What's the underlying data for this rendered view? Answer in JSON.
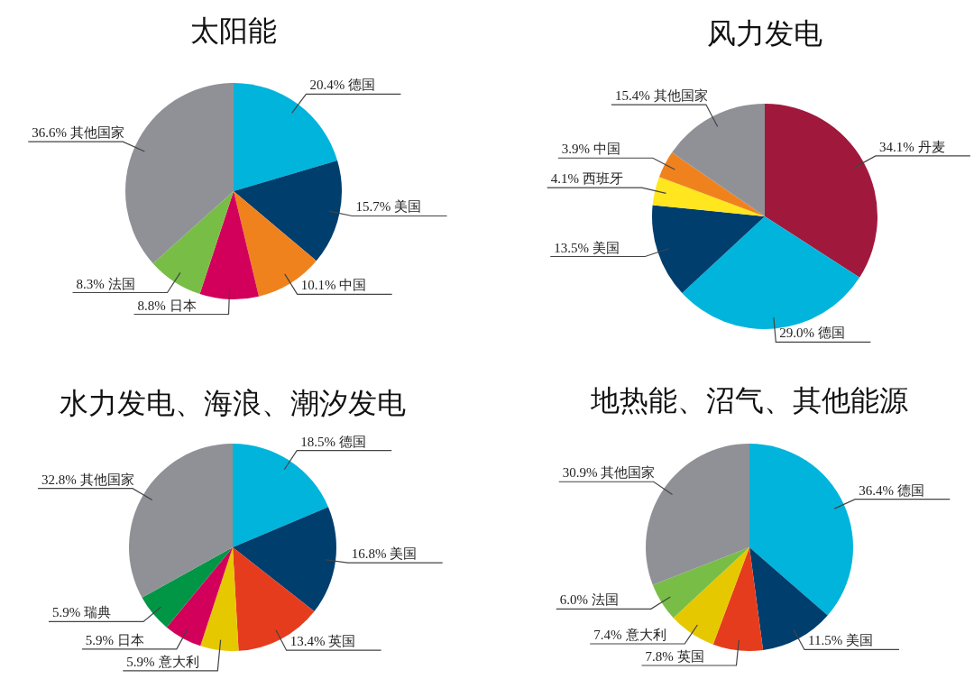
{
  "chart_data": [
    {
      "type": "pie",
      "title": "太阳能",
      "categories": [
        "德国",
        "美国",
        "中国",
        "日本",
        "法国",
        "其他国家"
      ],
      "values": [
        20.4,
        15.7,
        10.1,
        8.8,
        8.3,
        36.6
      ],
      "value_labels": [
        "20.4%",
        "15.7%",
        "10.1%",
        "8.8%",
        "8.3%",
        "36.6%"
      ],
      "colors": [
        "#00b4dc",
        "#003e6e",
        "#f0821e",
        "#d2005a",
        "#78be46",
        "#909196"
      ]
    },
    {
      "type": "pie",
      "title": "风力发电",
      "categories": [
        "丹麦",
        "德国",
        "美国",
        "西班牙",
        "中国",
        "其他国家"
      ],
      "values": [
        34.1,
        29.0,
        13.5,
        4.1,
        3.9,
        15.4
      ],
      "value_labels": [
        "34.1%",
        "29.0%",
        "13.5%",
        "4.1%",
        "3.9%",
        "15.4%"
      ],
      "colors": [
        "#a0193c",
        "#00b4dc",
        "#003e6e",
        "#ffe61e",
        "#f0821e",
        "#909196"
      ]
    },
    {
      "type": "pie",
      "title": "水力发电、海浪、潮汐发电",
      "categories": [
        "德国",
        "美国",
        "英国",
        "意大利",
        "日本",
        "瑞典",
        "其他国家"
      ],
      "values": [
        18.5,
        16.8,
        13.4,
        5.9,
        5.9,
        5.9,
        32.8
      ],
      "value_labels": [
        "18.5%",
        "16.8%",
        "13.4%",
        "5.9%",
        "5.9%",
        "5.9%",
        "32.8%"
      ],
      "colors": [
        "#00b4dc",
        "#003e6e",
        "#e63c1e",
        "#e6c800",
        "#d2005a",
        "#009646",
        "#909196"
      ]
    },
    {
      "type": "pie",
      "title": "地热能、沼气、其他能源",
      "categories": [
        "德国",
        "美国",
        "英国",
        "意大利",
        "法国",
        "其他国家"
      ],
      "values": [
        36.4,
        11.5,
        7.8,
        7.4,
        6.0,
        30.9
      ],
      "value_labels": [
        "36.4%",
        "11.5%",
        "7.8%",
        "7.4%",
        "6.0%",
        "30.9%"
      ],
      "colors": [
        "#00b4dc",
        "#003e6e",
        "#e63c1e",
        "#e6c800",
        "#78be46",
        "#909196"
      ]
    }
  ]
}
